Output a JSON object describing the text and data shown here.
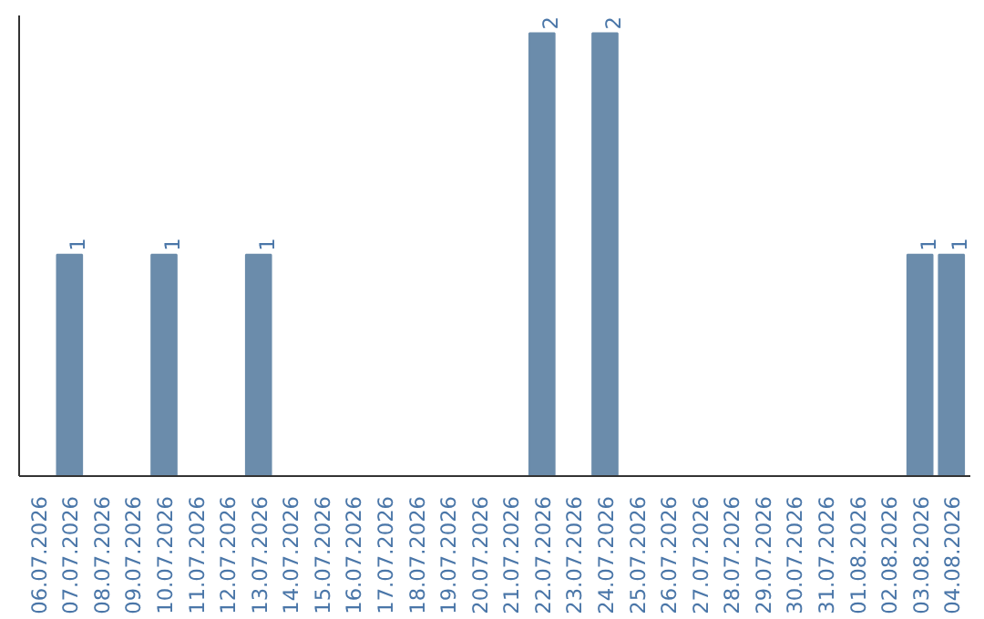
{
  "chart_data": {
    "type": "bar",
    "categories": [
      "06.07.2026",
      "07.07.2026",
      "08.07.2026",
      "09.07.2026",
      "10.07.2026",
      "11.07.2026",
      "12.07.2026",
      "13.07.2026",
      "14.07.2026",
      "15.07.2026",
      "16.07.2026",
      "17.07.2026",
      "18.07.2026",
      "19.07.2026",
      "20.07.2026",
      "21.07.2026",
      "22.07.2026",
      "23.07.2026",
      "24.07.2026",
      "25.07.2026",
      "26.07.2026",
      "27.07.2026",
      "28.07.2026",
      "29.07.2026",
      "30.07.2026",
      "31.07.2026",
      "01.08.2026",
      "02.08.2026",
      "03.08.2026",
      "04.08.2026"
    ],
    "values": [
      0,
      1,
      0,
      0,
      1,
      0,
      0,
      1,
      0,
      0,
      0,
      0,
      0,
      0,
      0,
      0,
      2,
      0,
      2,
      0,
      0,
      0,
      0,
      0,
      0,
      0,
      0,
      0,
      1,
      1
    ],
    "value_labels": [
      null,
      "1",
      null,
      null,
      "1",
      null,
      null,
      "1",
      null,
      null,
      null,
      null,
      null,
      null,
      null,
      null,
      "2",
      null,
      "2",
      null,
      null,
      null,
      null,
      null,
      null,
      null,
      null,
      null,
      "1",
      "1"
    ],
    "color": "#6b8cab",
    "grid": false,
    "tick_labels": "x"
  }
}
